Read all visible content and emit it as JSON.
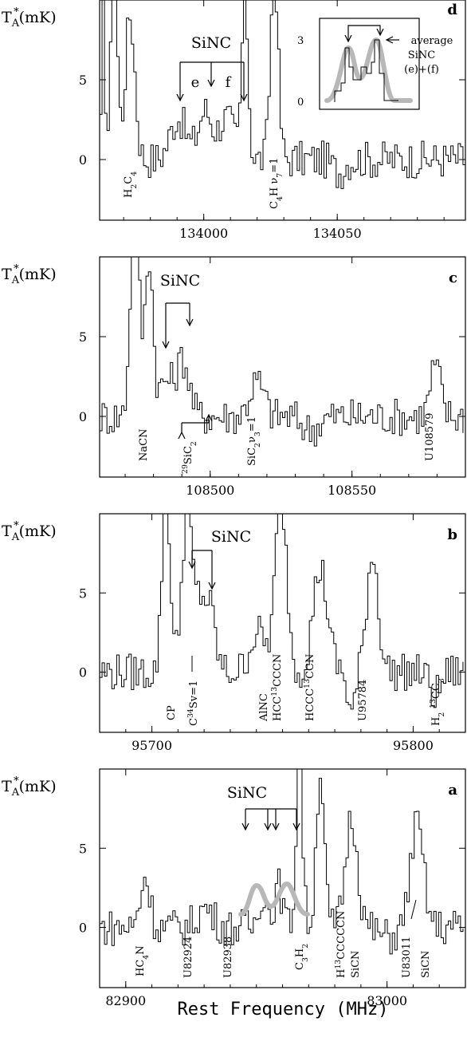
{
  "chart_data": [
    {
      "id": "d",
      "type": "line",
      "panel_label": "d",
      "ylabel_main": "T",
      "ylabel_sub": "A",
      "ylabel_sup": "*",
      "ylabel_rest": "(mK)",
      "xlim": [
        133961,
        134098
      ],
      "ylim": [
        -3.8,
        10
      ],
      "xticks": [
        {
          "v": 134000,
          "t": "134000"
        },
        {
          "v": 134050,
          "t": "134050"
        }
      ],
      "yticks": [
        {
          "v": 0,
          "t": "0"
        },
        {
          "v": 5,
          "t": "5"
        }
      ],
      "title_annotation": "SiNC",
      "sub_labels": [
        "e",
        "f"
      ],
      "lines": [
        {
          "x": 133978.5,
          "bot": "H",
          "sub": "2",
          "rest": "C",
          "sub2": "4"
        },
        {
          "x": 134018,
          "bot": "C",
          "sub": "4",
          "rest": "H ν",
          "sub2": "7",
          "tail": "=1"
        }
      ],
      "inset": {
        "yticks": [
          {
            "v": 0,
            "t": "0"
          },
          {
            "v": 3,
            "t": "3"
          }
        ],
        "labels": [
          "average",
          "SiNC",
          "(e)+(f)"
        ]
      }
    },
    {
      "id": "c",
      "type": "line",
      "panel_label": "c",
      "ylabel_main": "T",
      "ylabel_sub": "A",
      "ylabel_sup": "*",
      "ylabel_rest": "(mK)",
      "xlim": [
        108461,
        108590
      ],
      "ylim": [
        -3.8,
        10
      ],
      "xticks": [
        {
          "v": 108500,
          "t": "108500"
        },
        {
          "v": 108550,
          "t": "108550"
        }
      ],
      "yticks": [
        {
          "v": 0,
          "t": "0"
        },
        {
          "v": 5,
          "t": "5"
        }
      ],
      "title_annotation": "SiNC",
      "lines": [
        {
          "x": 108473,
          "bot": "NaCN"
        },
        {
          "x": 108490,
          "bot": "29SiC2"
        },
        {
          "x": 108516,
          "bot": "SiC2ν3=1"
        },
        {
          "x": 108579,
          "bot": "U108579"
        }
      ]
    },
    {
      "id": "b",
      "type": "line",
      "panel_label": "b",
      "ylabel_main": "T",
      "ylabel_sub": "A",
      "ylabel_sup": "*",
      "ylabel_rest": "(mK)",
      "xlim": [
        95680,
        95820
      ],
      "ylim": [
        -3.8,
        10
      ],
      "xticks": [
        {
          "v": 95700,
          "t": "95700"
        },
        {
          "v": 95800,
          "t": "95800"
        }
      ],
      "yticks": [
        {
          "v": 0,
          "t": "0"
        },
        {
          "v": 5,
          "t": "5"
        }
      ],
      "title_annotation": "SiNC",
      "lines": [
        {
          "x": 95705,
          "bot": "CP"
        },
        {
          "x": 95718,
          "bot": "C34Sv=1"
        },
        {
          "x": 95749,
          "bot": "AlNC HCC13CCCN"
        },
        {
          "x": 95764,
          "bot": "HCCC13CCN"
        },
        {
          "x": 95784,
          "bot": "U95784"
        },
        {
          "x": 95814,
          "bot": "H2 13CC3"
        }
      ]
    },
    {
      "id": "a",
      "type": "line",
      "panel_label": "a",
      "ylabel_main": "T",
      "ylabel_sub": "A",
      "ylabel_sup": "*",
      "ylabel_rest": "(mK)",
      "xlim": [
        82890,
        83030
      ],
      "ylim": [
        -3.8,
        10
      ],
      "xticks": [
        {
          "v": 82900,
          "t": "82900"
        },
        {
          "v": 83000,
          "t": "83000"
        }
      ],
      "yticks": [
        {
          "v": 0,
          "t": "0"
        },
        {
          "v": 5,
          "t": "5"
        }
      ],
      "title_annotation": "SiNC",
      "lines": [
        {
          "x": 82907,
          "bot": "HC4N"
        },
        {
          "x": 82924,
          "bot": "U82924"
        },
        {
          "x": 82938,
          "bot": "U82938"
        },
        {
          "x": 82966,
          "bot": "C3H2"
        },
        {
          "x": 82986,
          "bot": "H13CCCCCN SiCN"
        },
        {
          "x": 83011,
          "bot": "U83011 SiCN"
        }
      ]
    }
  ],
  "xaxis_title": "Rest Frequency (MHz)",
  "labels_text": {
    "d_h2c4": "H2C4",
    "d_c4h": "C4H ν7=1",
    "c_nacn": "NaCN",
    "c_29sic2": "29SiC2",
    "c_sic2": "SiC2ν3=1",
    "c_u108579": "U108579",
    "b_cp": "CP",
    "b_c34s": "C34Sv=1",
    "b_alnc": "AlNC",
    "b_hcc13cccn": "HCC13CCCN",
    "b_hccc13ccn": "HCCC13CCN",
    "b_u95784": "U95784",
    "b_h213cc3": "H2 13CC3",
    "a_hc4n": "HC4N",
    "a_u82924": "U82924",
    "a_u82938": "U82938",
    "a_c3h2": "C3H2",
    "a_h13ccccn": "H13CCCCCN",
    "a_sicn1": "SiCN",
    "a_u83011": "U83011",
    "a_sicn2": "SiCN"
  }
}
